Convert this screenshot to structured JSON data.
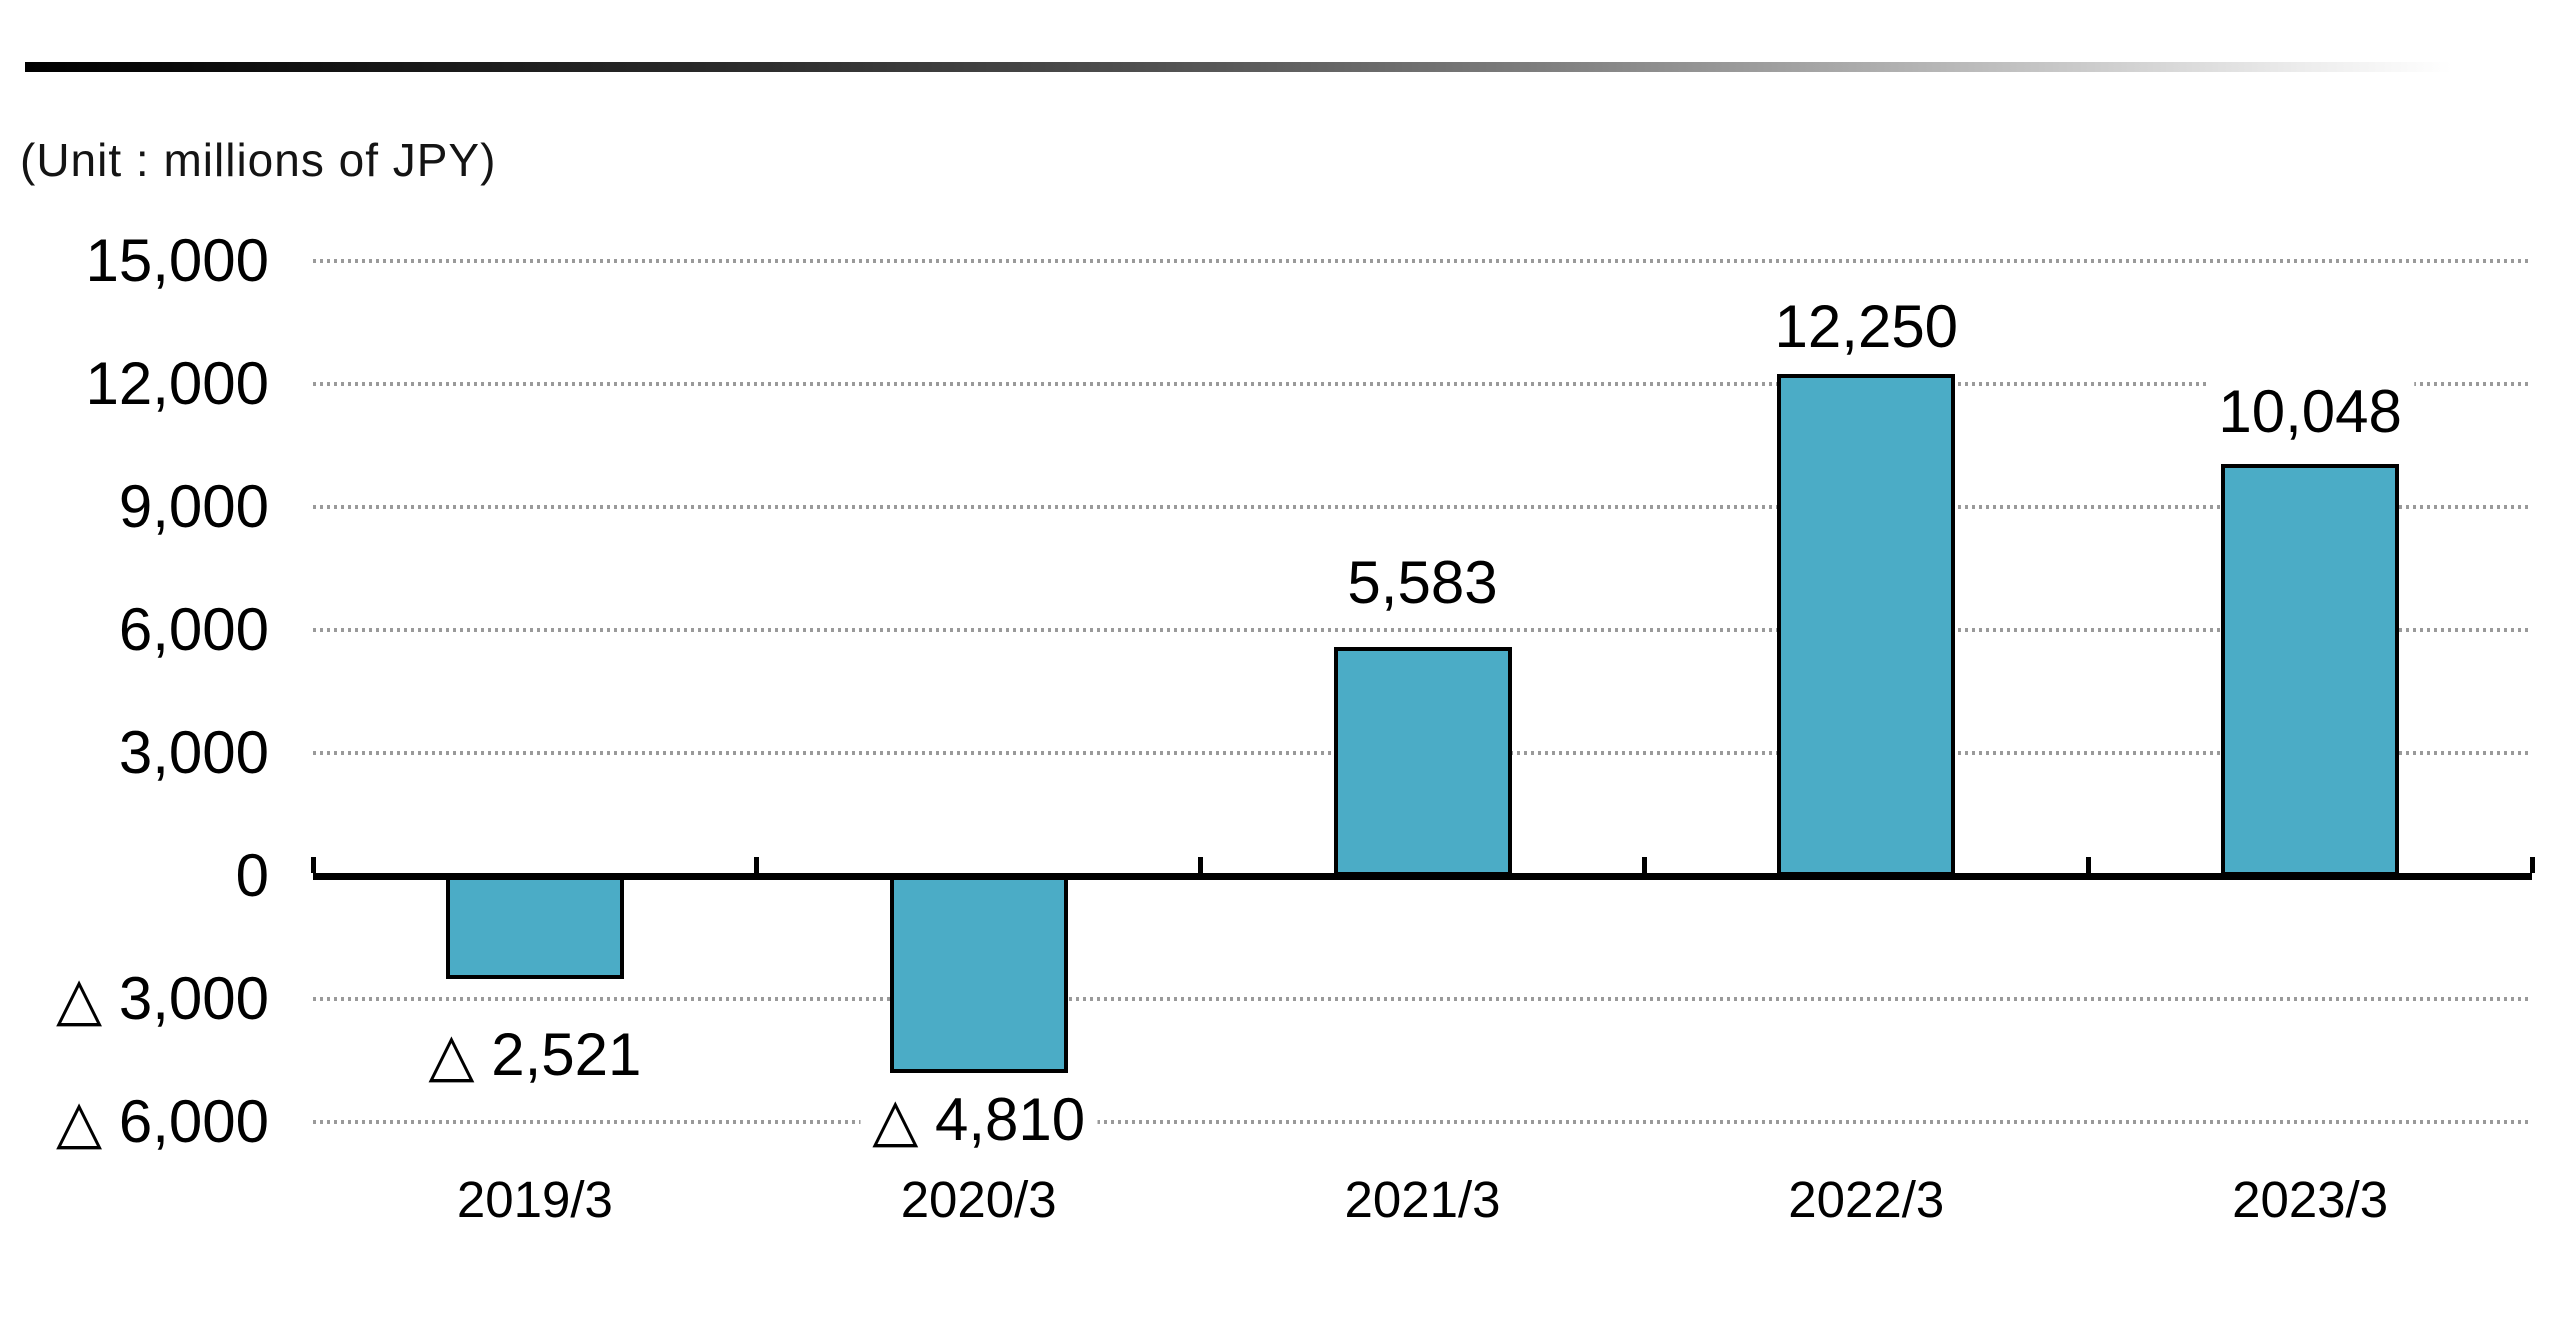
{
  "chart_data": {
    "type": "bar",
    "title": "",
    "unit_note": "(Unit : millions of JPY)",
    "categories": [
      "2019/3",
      "2020/3",
      "2021/3",
      "2022/3",
      "2023/3"
    ],
    "values": [
      -2521,
      -4810,
      5583,
      12250,
      10048
    ],
    "data_labels": [
      "△ 2,521",
      "△ 4,810",
      "5,583",
      "12,250",
      "10,048"
    ],
    "y_ticks": [
      {
        "value": 15000,
        "label": "15,000"
      },
      {
        "value": 12000,
        "label": "12,000"
      },
      {
        "value": 9000,
        "label": "9,000"
      },
      {
        "value": 6000,
        "label": "6,000"
      },
      {
        "value": 3000,
        "label": "3,000"
      },
      {
        "value": 0,
        "label": "0"
      },
      {
        "value": -3000,
        "label": "△ 3,000"
      },
      {
        "value": -6000,
        "label": "△ 6,000"
      }
    ],
    "ylim": [
      -6000,
      15000
    ],
    "grid": "dotted horizontal gridlines, solid black zero axis with up ticks at category boundaries",
    "legend": "none",
    "colors": {
      "bar_fill": "#4BACC6",
      "bar_border": "#000000",
      "gridline": "#9A9A9A",
      "axis": "#000000",
      "label_text": "#000000",
      "label_background": "#FFFFFF",
      "top_rule_gradient_start": "#000000",
      "top_rule_gradient_end": "#FFFFFF"
    }
  }
}
